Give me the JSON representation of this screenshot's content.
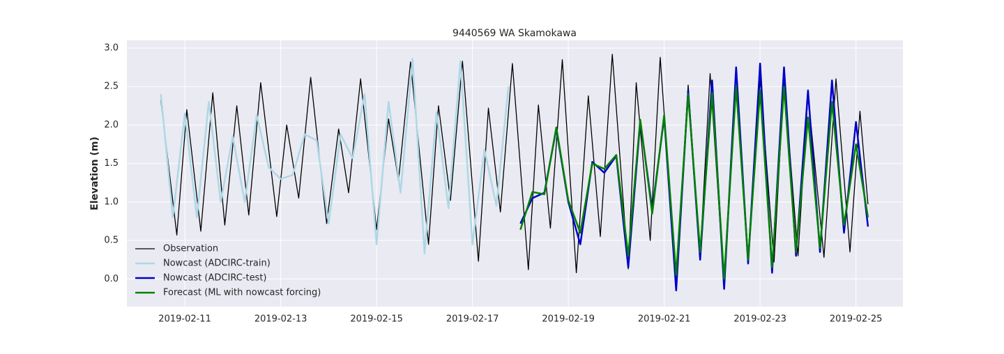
{
  "chart_data": {
    "type": "line",
    "title": "9440569 WA Skamokawa",
    "ylabel": "Elevation (m)",
    "xlim": [
      "2019-02-09T19:00",
      "2019-02-25T23:30"
    ],
    "xticks": [
      "2019-02-11",
      "2019-02-13",
      "2019-02-15",
      "2019-02-17",
      "2019-02-19",
      "2019-02-21",
      "2019-02-23",
      "2019-02-25"
    ],
    "ylim": [
      -0.36,
      3.1
    ],
    "yticks": [
      {
        "value": 0,
        "label": "0.0"
      },
      0.5,
      {
        "value": 1,
        "label": "1.0"
      },
      1.5,
      {
        "value": 2,
        "label": "2.0"
      },
      2.5,
      {
        "value": 3,
        "label": "3.0"
      }
    ],
    "grid": true,
    "legend": "lower left",
    "series": [
      {
        "name": "Observation",
        "color": "#000000",
        "width": 1.3,
        "x": [
          "2019-02-10T12:00",
          "2019-02-10T20:00",
          "2019-02-11T01:00",
          "2019-02-11T08:00",
          "2019-02-11T14:00",
          "2019-02-11T20:00",
          "2019-02-12T02:00",
          "2019-02-12T08:00",
          "2019-02-12T14:00",
          "2019-02-12T22:00",
          "2019-02-13T03:00",
          "2019-02-13T09:00",
          "2019-02-13T15:00",
          "2019-02-13T23:00",
          "2019-02-14T05:00",
          "2019-02-14T10:00",
          "2019-02-14T16:00",
          "2019-02-15T00:00",
          "2019-02-15T06:00",
          "2019-02-15T11:00",
          "2019-02-15T17:00",
          "2019-02-16T02:00",
          "2019-02-16T07:00",
          "2019-02-16T13:00",
          "2019-02-16T19:00",
          "2019-02-17T03:00",
          "2019-02-17T08:00",
          "2019-02-17T14:00",
          "2019-02-17T20:00",
          "2019-02-18T04:00",
          "2019-02-18T09:00",
          "2019-02-18T15:00",
          "2019-02-18T21:00",
          "2019-02-19T04:00",
          "2019-02-19T10:00",
          "2019-02-19T16:00",
          "2019-02-19T22:00",
          "2019-02-20T06:00",
          "2019-02-20T10:00",
          "2019-02-20T17:00",
          "2019-02-20T22:00",
          "2019-02-21T06:00",
          "2019-02-21T12:00",
          "2019-02-21T18:00",
          "2019-02-21T23:00",
          "2019-02-22T06:00",
          "2019-02-22T12:00",
          "2019-02-22T18:00",
          "2019-02-23T00:00",
          "2019-02-23T07:00",
          "2019-02-23T12:00",
          "2019-02-23T19:00",
          "2019-02-24T00:00",
          "2019-02-24T08:00",
          "2019-02-24T14:00",
          "2019-02-24T21:00",
          "2019-02-25T02:00",
          "2019-02-25T06:00"
        ],
        "values": [
          2.32,
          0.57,
          2.2,
          0.62,
          2.42,
          0.7,
          2.25,
          0.83,
          2.55,
          0.81,
          2.0,
          1.05,
          2.62,
          0.72,
          1.95,
          1.12,
          2.6,
          0.64,
          2.08,
          1.28,
          2.82,
          0.45,
          2.25,
          1.02,
          2.83,
          0.23,
          2.22,
          0.87,
          2.8,
          0.12,
          2.26,
          0.66,
          2.85,
          0.08,
          2.38,
          0.55,
          2.92,
          0.13,
          2.55,
          0.5,
          2.88,
          -0.05,
          2.52,
          0.3,
          2.67,
          -0.08,
          2.72,
          0.2,
          2.6,
          0.22,
          2.6,
          0.3,
          2.4,
          0.28,
          2.6,
          0.35,
          2.18,
          0.97
        ]
      },
      {
        "name": "Nowcast (ADCIRC-train)",
        "color": "#add8e6",
        "width": 2.5,
        "x": [
          "2019-02-10T12:00",
          "2019-02-10T18:00",
          "2019-02-11T00:00",
          "2019-02-11T06:00",
          "2019-02-11T12:00",
          "2019-02-11T18:00",
          "2019-02-12T00:00",
          "2019-02-12T06:00",
          "2019-02-12T12:00",
          "2019-02-12T18:00",
          "2019-02-13T00:00",
          "2019-02-13T06:00",
          "2019-02-13T12:00",
          "2019-02-13T18:00",
          "2019-02-14T00:00",
          "2019-02-14T06:00",
          "2019-02-14T12:00",
          "2019-02-14T18:00",
          "2019-02-15T00:00",
          "2019-02-15T06:00",
          "2019-02-15T12:00",
          "2019-02-15T18:00",
          "2019-02-16T00:00",
          "2019-02-16T06:00",
          "2019-02-16T12:00",
          "2019-02-16T18:00",
          "2019-02-17T00:00",
          "2019-02-17T06:00",
          "2019-02-17T12:00",
          "2019-02-17T18:00"
        ],
        "values": [
          2.4,
          0.8,
          2.15,
          0.8,
          2.3,
          1.0,
          1.85,
          1.0,
          2.13,
          1.45,
          1.3,
          1.35,
          1.88,
          1.8,
          0.72,
          1.88,
          1.57,
          2.4,
          0.45,
          2.3,
          1.12,
          2.86,
          0.33,
          2.17,
          0.92,
          2.83,
          0.45,
          1.68,
          0.95,
          2.5
        ]
      },
      {
        "name": "Nowcast (ADCIRC-test)",
        "color": "#0000cd",
        "width": 2.5,
        "x": [
          "2019-02-18T00:00",
          "2019-02-18T06:00",
          "2019-02-18T12:00",
          "2019-02-18T18:00",
          "2019-02-19T00:00",
          "2019-02-19T06:00",
          "2019-02-19T12:00",
          "2019-02-19T18:00",
          "2019-02-20T00:00",
          "2019-02-20T06:00",
          "2019-02-20T12:00",
          "2019-02-20T18:00",
          "2019-02-21T00:00",
          "2019-02-21T06:00",
          "2019-02-21T12:00",
          "2019-02-21T18:00",
          "2019-02-22T00:00",
          "2019-02-22T06:00",
          "2019-02-22T12:00",
          "2019-02-22T18:00",
          "2019-02-23T00:00",
          "2019-02-23T06:00",
          "2019-02-23T12:00",
          "2019-02-23T18:00",
          "2019-02-24T00:00",
          "2019-02-24T06:00",
          "2019-02-24T12:00",
          "2019-02-24T18:00",
          "2019-02-25T00:00",
          "2019-02-25T06:00"
        ],
        "values": [
          0.72,
          1.05,
          1.12,
          1.95,
          1.0,
          0.45,
          1.52,
          1.38,
          1.6,
          0.15,
          2.05,
          0.9,
          2.1,
          -0.15,
          2.45,
          0.25,
          2.58,
          -0.13,
          2.75,
          0.2,
          2.8,
          0.08,
          2.75,
          0.3,
          2.45,
          0.35,
          2.58,
          0.6,
          2.04,
          0.68
        ]
      },
      {
        "name": "Forecast (ML with nowcast forcing)",
        "color": "#008000",
        "width": 2.5,
        "x": [
          "2019-02-18T00:00",
          "2019-02-18T06:00",
          "2019-02-18T12:00",
          "2019-02-18T18:00",
          "2019-02-19T00:00",
          "2019-02-19T06:00",
          "2019-02-19T12:00",
          "2019-02-19T18:00",
          "2019-02-20T00:00",
          "2019-02-20T06:00",
          "2019-02-20T12:00",
          "2019-02-20T18:00",
          "2019-02-21T00:00",
          "2019-02-21T06:00",
          "2019-02-21T12:00",
          "2019-02-21T18:00",
          "2019-02-22T00:00",
          "2019-02-22T06:00",
          "2019-02-22T12:00",
          "2019-02-22T18:00",
          "2019-02-23T00:00",
          "2019-02-23T06:00",
          "2019-02-23T12:00",
          "2019-02-23T18:00",
          "2019-02-24T00:00",
          "2019-02-24T06:00",
          "2019-02-24T12:00",
          "2019-02-24T18:00",
          "2019-02-25T00:00",
          "2019-02-25T06:00"
        ],
        "values": [
          0.64,
          1.13,
          1.1,
          1.97,
          1.02,
          0.6,
          1.5,
          1.43,
          1.61,
          0.3,
          2.07,
          0.85,
          2.13,
          0.05,
          2.4,
          0.35,
          2.42,
          0.0,
          2.5,
          0.25,
          2.45,
          0.15,
          2.5,
          0.35,
          2.1,
          0.4,
          2.3,
          0.7,
          1.75,
          0.8
        ]
      }
    ]
  }
}
